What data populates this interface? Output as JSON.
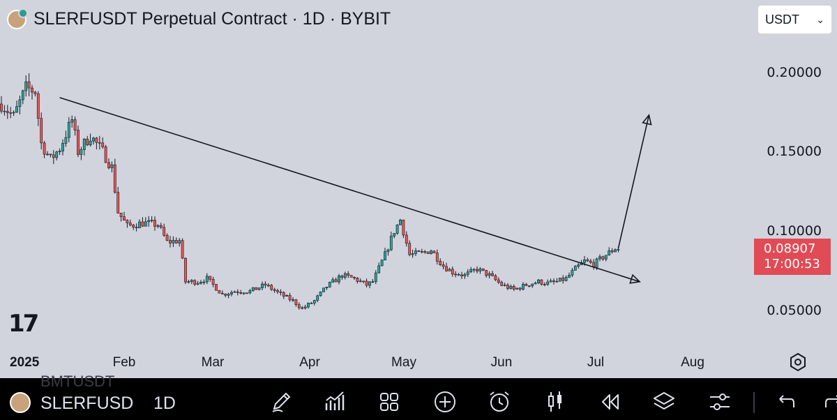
{
  "header": {
    "title": "SLERFUSDT Perpetual Contract · 1D · BYBIT",
    "currency_select": "USDT"
  },
  "price_axis": {
    "labels": [
      "0.20000",
      "0.15000",
      "0.10000",
      "0.05000"
    ],
    "current_price": "0.08907",
    "countdown": "17:00:53"
  },
  "time_axis": {
    "year": "2025",
    "months": [
      "Feb",
      "Mar",
      "Apr",
      "May",
      "Jun",
      "Jul",
      "Aug"
    ]
  },
  "bottom_bar": {
    "symbol": "SLERFUSD",
    "interval": "1D",
    "ghost_text": "BMTUSDT",
    "icons": [
      "pen-icon",
      "indicators-icon",
      "layout-grid-icon",
      "add-icon",
      "alarm-icon",
      "candles-icon",
      "replay-icon",
      "layers-icon",
      "settings-sliders-icon",
      "undo-icon",
      "redo-icon"
    ]
  },
  "colors": {
    "background": "#d1d4dc",
    "up": "#26a69a",
    "down": "#ef5350",
    "price_tag": "#e04b55"
  },
  "chart_data": {
    "type": "candlestick",
    "title": "SLERFUSDT Perpetual Contract · 1D · BYBIT",
    "x_range": [
      "2025-01-01",
      "2025-07-22"
    ],
    "ylim": [
      0.04,
      0.22
    ],
    "y_ticks": [
      0.05,
      0.1,
      0.15,
      0.2
    ],
    "grid": false,
    "close_anchors": [
      [
        "2025-01-01",
        0.18
      ],
      [
        "2025-01-05",
        0.172
      ],
      [
        "2025-01-09",
        0.19
      ],
      [
        "2025-01-12",
        0.188
      ],
      [
        "2025-01-14",
        0.155
      ],
      [
        "2025-01-17",
        0.145
      ],
      [
        "2025-01-20",
        0.152
      ],
      [
        "2025-01-24",
        0.17
      ],
      [
        "2025-01-26",
        0.15
      ],
      [
        "2025-01-30",
        0.16
      ],
      [
        "2025-02-03",
        0.15
      ],
      [
        "2025-02-06",
        0.14
      ],
      [
        "2025-02-08",
        0.112
      ],
      [
        "2025-02-11",
        0.103
      ],
      [
        "2025-02-16",
        0.105
      ],
      [
        "2025-02-21",
        0.104
      ],
      [
        "2025-02-24",
        0.093
      ],
      [
        "2025-02-28",
        0.094
      ],
      [
        "2025-03-02",
        0.068
      ],
      [
        "2025-03-06",
        0.068
      ],
      [
        "2025-03-09",
        0.07
      ],
      [
        "2025-03-11",
        0.066
      ],
      [
        "2025-03-14",
        0.06
      ],
      [
        "2025-03-18",
        0.062
      ],
      [
        "2025-03-23",
        0.062
      ],
      [
        "2025-03-28",
        0.066
      ],
      [
        "2025-04-02",
        0.06
      ],
      [
        "2025-04-06",
        0.056
      ],
      [
        "2025-04-09",
        0.051
      ],
      [
        "2025-04-13",
        0.056
      ],
      [
        "2025-04-17",
        0.065
      ],
      [
        "2025-04-22",
        0.072
      ],
      [
        "2025-04-26",
        0.07
      ],
      [
        "2025-04-30",
        0.066
      ],
      [
        "2025-05-02",
        0.068
      ],
      [
        "2025-05-06",
        0.085
      ],
      [
        "2025-05-09",
        0.1
      ],
      [
        "2025-05-11",
        0.107
      ],
      [
        "2025-05-14",
        0.085
      ],
      [
        "2025-05-18",
        0.086
      ],
      [
        "2025-05-21",
        0.088
      ],
      [
        "2025-05-25",
        0.078
      ],
      [
        "2025-05-28",
        0.074
      ],
      [
        "2025-06-01",
        0.072
      ],
      [
        "2025-06-05",
        0.076
      ],
      [
        "2025-06-09",
        0.072
      ],
      [
        "2025-06-13",
        0.066
      ],
      [
        "2025-06-17",
        0.063
      ],
      [
        "2025-06-21",
        0.066
      ],
      [
        "2025-06-25",
        0.068
      ],
      [
        "2025-06-28",
        0.067
      ],
      [
        "2025-07-01",
        0.068
      ],
      [
        "2025-07-04",
        0.07
      ],
      [
        "2025-07-07",
        0.076
      ],
      [
        "2025-07-10",
        0.081
      ],
      [
        "2025-07-13",
        0.079
      ],
      [
        "2025-07-17",
        0.085
      ],
      [
        "2025-07-20",
        0.089
      ],
      [
        "2025-07-21",
        0.089
      ]
    ],
    "trendline": {
      "start": [
        "2025-01-20",
        0.184
      ],
      "end": [
        "2025-07-28",
        0.068
      ]
    },
    "arrow": {
      "start": [
        "2025-07-21",
        0.089
      ],
      "end": [
        "2025-07-31",
        0.173
      ]
    }
  }
}
